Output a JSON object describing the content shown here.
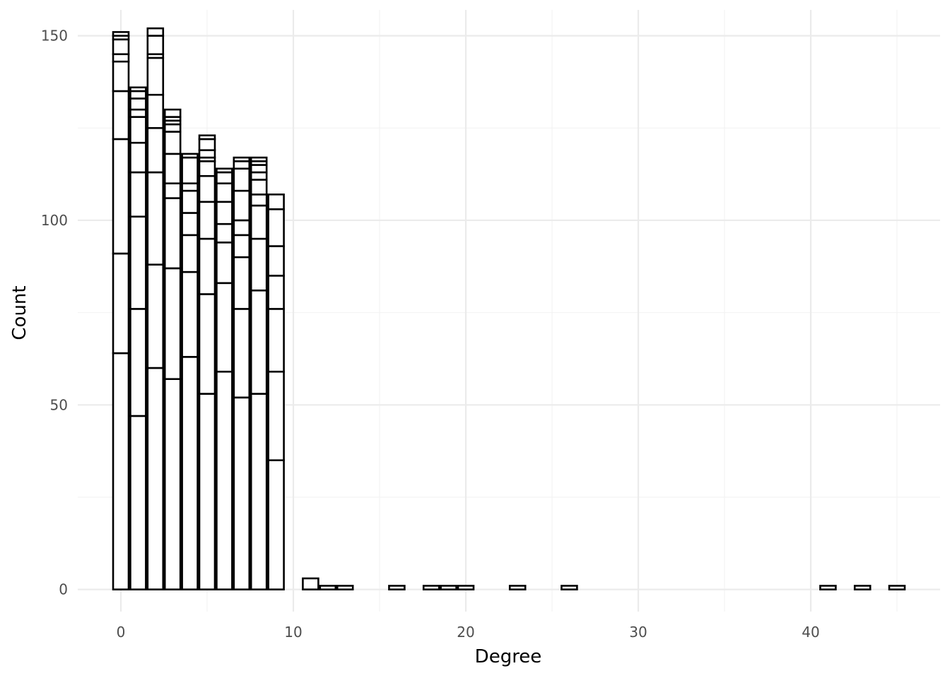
{
  "chart_data": {
    "type": "bar",
    "subtype": "stacked-histogram",
    "title": "",
    "xlabel": "Degree",
    "ylabel": "Count",
    "xlim": [
      -2.5,
      47.5
    ],
    "ylim": [
      -6,
      157
    ],
    "x_ticks": [
      0,
      10,
      20,
      30,
      40
    ],
    "x_tick_labels": [
      "0",
      "10",
      "20",
      "30",
      "40"
    ],
    "y_ticks": [
      0,
      50,
      100,
      150
    ],
    "y_tick_labels": [
      "0",
      "50",
      "100",
      "150"
    ],
    "grid": true,
    "legend": "none",
    "bar_fill": "#ffffff",
    "bar_stroke": "#000000",
    "bins": [
      {
        "x": 0,
        "boundaries": [
          64,
          91,
          122,
          135,
          143,
          145,
          149,
          150,
          151
        ]
      },
      {
        "x": 1,
        "boundaries": [
          47,
          76,
          101,
          113,
          121,
          128,
          130,
          133,
          135,
          136
        ]
      },
      {
        "x": 2,
        "boundaries": [
          60,
          88,
          113,
          125,
          134,
          144,
          145,
          150,
          152
        ]
      },
      {
        "x": 3,
        "boundaries": [
          57,
          87,
          106,
          110,
          118,
          124,
          126,
          127,
          128,
          130
        ]
      },
      {
        "x": 4,
        "boundaries": [
          63,
          86,
          96,
          102,
          108,
          110,
          117,
          118
        ]
      },
      {
        "x": 5,
        "boundaries": [
          53,
          80,
          95,
          105,
          112,
          116,
          117,
          119,
          122,
          123
        ]
      },
      {
        "x": 6,
        "boundaries": [
          59,
          83,
          94,
          99,
          105,
          110,
          113,
          114
        ]
      },
      {
        "x": 7,
        "boundaries": [
          52,
          76,
          90,
          96,
          100,
          108,
          114,
          116,
          117
        ]
      },
      {
        "x": 8,
        "boundaries": [
          53,
          81,
          95,
          104,
          107,
          111,
          113,
          115,
          116,
          117
        ]
      },
      {
        "x": 9,
        "boundaries": [
          35,
          59,
          76,
          85,
          93,
          103,
          107
        ]
      },
      {
        "x": 11,
        "boundaries": [
          3
        ]
      },
      {
        "x": 12,
        "boundaries": [
          1
        ]
      },
      {
        "x": 13,
        "boundaries": [
          1
        ]
      },
      {
        "x": 16,
        "boundaries": [
          1
        ]
      },
      {
        "x": 18,
        "boundaries": [
          1
        ]
      },
      {
        "x": 19,
        "boundaries": [
          1
        ]
      },
      {
        "x": 20,
        "boundaries": [
          1
        ]
      },
      {
        "x": 23,
        "boundaries": [
          1
        ]
      },
      {
        "x": 26,
        "boundaries": [
          1
        ]
      },
      {
        "x": 41,
        "boundaries": [
          1
        ]
      },
      {
        "x": 43,
        "boundaries": [
          1
        ]
      },
      {
        "x": 45,
        "boundaries": [
          1
        ]
      }
    ]
  }
}
